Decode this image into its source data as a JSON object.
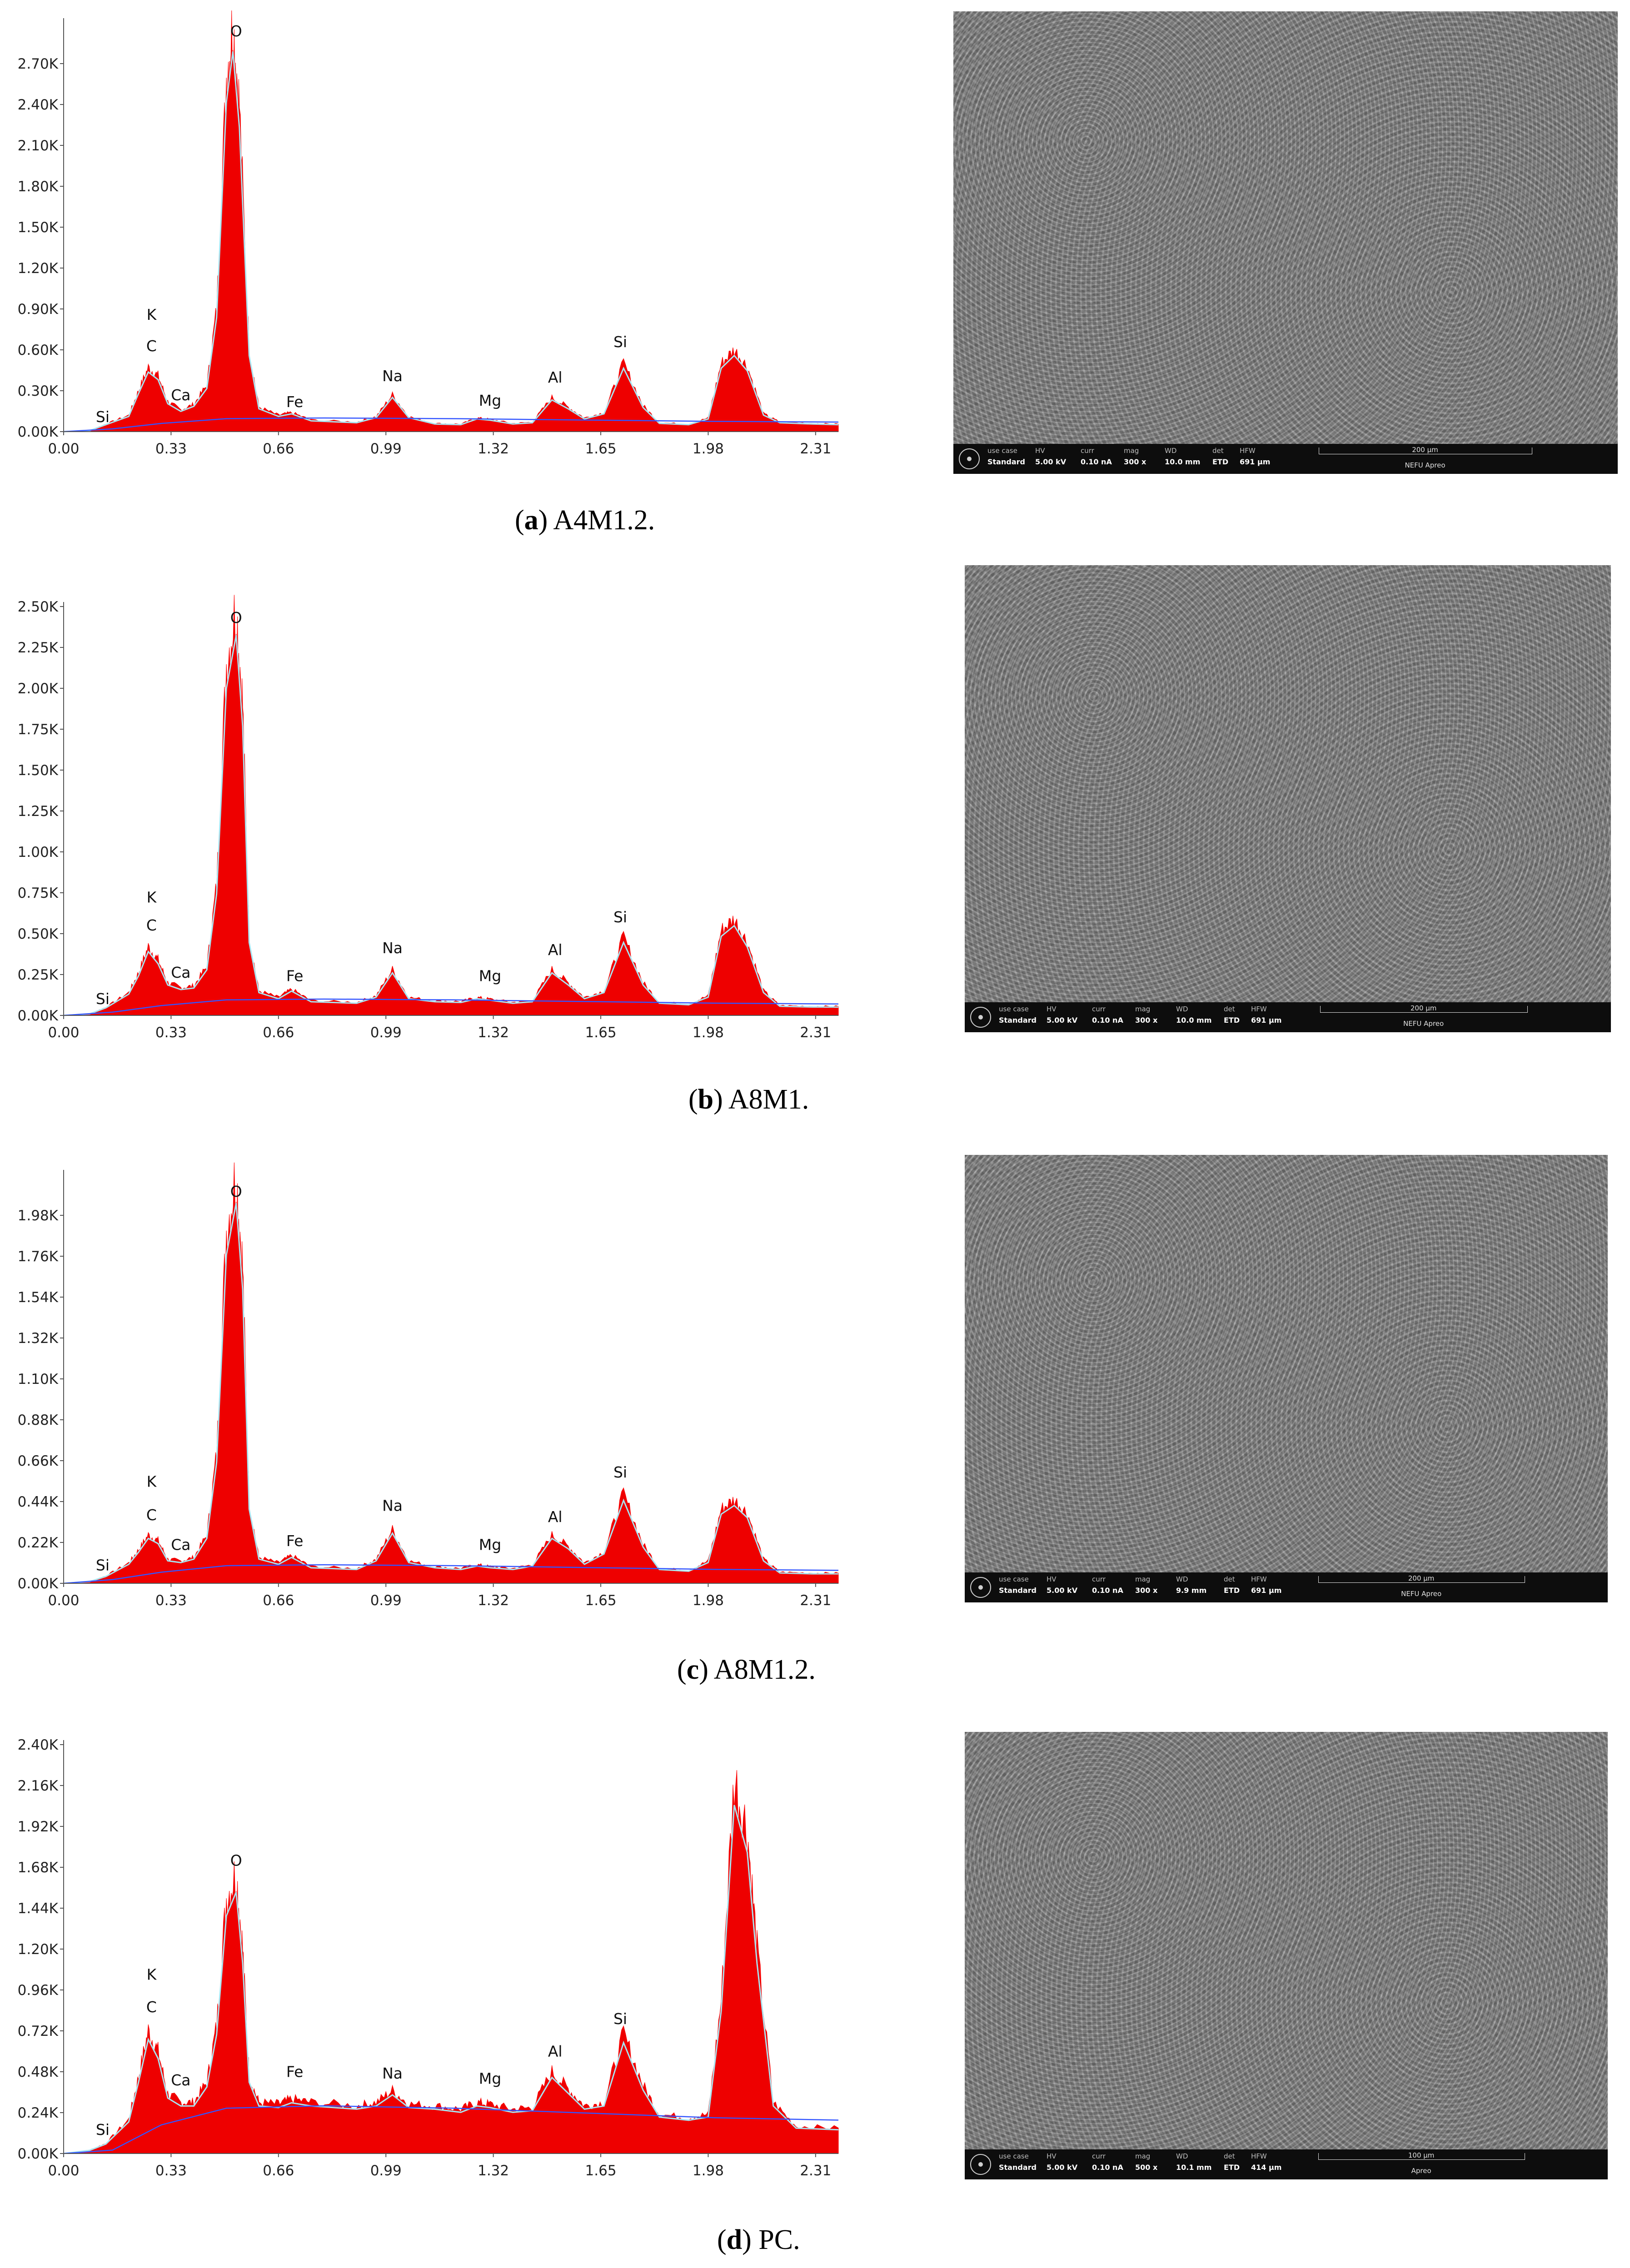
{
  "panels": [
    {
      "caption": {
        "letter": "a",
        "label": "A4M1.2."
      },
      "sem": {
        "head": [
          "use case",
          "HV",
          "curr",
          "mag",
          "WD",
          "det",
          "HFW"
        ],
        "vals": [
          "Standard",
          "5.00 kV",
          "0.10 nA",
          "300 x",
          "10.0 mm",
          "ETD",
          "691 μm"
        ],
        "scale": "200 μm",
        "tool": "NEFU Apreo"
      }
    },
    {
      "caption": {
        "letter": "b",
        "label": "A8M1."
      },
      "sem": {
        "head": [
          "use case",
          "HV",
          "curr",
          "mag",
          "WD",
          "det",
          "HFW"
        ],
        "vals": [
          "Standard",
          "5.00 kV",
          "0.10 nA",
          "300 x",
          "10.0 mm",
          "ETD",
          "691 μm"
        ],
        "scale": "200 μm",
        "tool": "NEFU Apreo"
      }
    },
    {
      "caption": {
        "letter": "c",
        "label": "A8M1.2."
      },
      "sem": {
        "head": [
          "use case",
          "HV",
          "curr",
          "mag",
          "WD",
          "det",
          "HFW"
        ],
        "vals": [
          "Standard",
          "5.00 kV",
          "0.10 nA",
          "300 x",
          "9.9 mm",
          "ETD",
          "691 μm"
        ],
        "scale": "200 μm",
        "tool": "NEFU Apreo"
      }
    },
    {
      "caption": {
        "letter": "d",
        "label": "PC."
      },
      "sem": {
        "head": [
          "use case",
          "HV",
          "curr",
          "mag",
          "WD",
          "det",
          "HFW"
        ],
        "vals": [
          "Standard",
          "5.00 kV",
          "0.10 nA",
          "500 x",
          "10.1 mm",
          "ETD",
          "414 μm"
        ],
        "scale": "100 μm",
        "tool": "Apreo"
      }
    }
  ],
  "chart_data": [
    {
      "type": "area",
      "x_ticks": [
        0.0,
        0.33,
        0.66,
        0.99,
        1.32,
        1.65,
        1.98,
        2.31
      ],
      "y_ticks": [
        "0.00K",
        "0.30K",
        "0.60K",
        "0.90K",
        "1.20K",
        "1.50K",
        "1.80K",
        "2.10K",
        "2.40K",
        "2.70K"
      ],
      "xlim": [
        0,
        2.38
      ],
      "ylim": [
        0,
        3000
      ],
      "series": [
        {
          "values": [
            [
              0.0,
              0
            ],
            [
              0.08,
              8
            ],
            [
              0.13,
              55
            ],
            [
              0.2,
              120
            ],
            [
              0.23,
              300
            ],
            [
              0.26,
              470
            ],
            [
              0.29,
              410
            ],
            [
              0.32,
              220
            ],
            [
              0.36,
              160
            ],
            [
              0.4,
              200
            ],
            [
              0.44,
              340
            ],
            [
              0.47,
              900
            ],
            [
              0.5,
              2600
            ],
            [
              0.52,
              3000
            ],
            [
              0.54,
              2400
            ],
            [
              0.57,
              600
            ],
            [
              0.6,
              180
            ],
            [
              0.66,
              120
            ],
            [
              0.7,
              140
            ],
            [
              0.76,
              85
            ],
            [
              0.9,
              70
            ],
            [
              0.96,
              110
            ],
            [
              1.01,
              270
            ],
            [
              1.06,
              110
            ],
            [
              1.14,
              60
            ],
            [
              1.22,
              55
            ],
            [
              1.27,
              100
            ],
            [
              1.31,
              90
            ],
            [
              1.38,
              60
            ],
            [
              1.44,
              70
            ],
            [
              1.5,
              250
            ],
            [
              1.55,
              180
            ],
            [
              1.6,
              100
            ],
            [
              1.66,
              140
            ],
            [
              1.72,
              500
            ],
            [
              1.78,
              190
            ],
            [
              1.83,
              65
            ],
            [
              1.92,
              55
            ],
            [
              1.98,
              100
            ],
            [
              2.02,
              500
            ],
            [
              2.06,
              600
            ],
            [
              2.1,
              480
            ],
            [
              2.15,
              130
            ],
            [
              2.2,
              70
            ],
            [
              2.3,
              60
            ],
            [
              2.38,
              55
            ]
          ]
        }
      ],
      "peaks": [
        {
          "label": "Si",
          "x": 0.12,
          "y": 70
        },
        {
          "label": "K",
          "x": 0.27,
          "y": 820
        },
        {
          "label": "C",
          "x": 0.27,
          "y": 590
        },
        {
          "label": "Ca",
          "x": 0.36,
          "y": 230
        },
        {
          "label": "O",
          "x": 0.53,
          "y": 2900
        },
        {
          "label": "Fe",
          "x": 0.71,
          "y": 180
        },
        {
          "label": "Na",
          "x": 1.01,
          "y": 370
        },
        {
          "label": "Mg",
          "x": 1.31,
          "y": 190
        },
        {
          "label": "Al",
          "x": 1.51,
          "y": 360
        },
        {
          "label": "Si",
          "x": 1.71,
          "y": 620
        }
      ]
    },
    {
      "type": "area",
      "x_ticks": [
        0.0,
        0.33,
        0.66,
        0.99,
        1.32,
        1.65,
        1.98,
        2.31
      ],
      "y_ticks": [
        "0.00K",
        "0.25K",
        "0.50K",
        "0.75K",
        "1.00K",
        "1.25K",
        "1.50K",
        "1.75K",
        "2.00K",
        "2.25K",
        "2.50K"
      ],
      "xlim": [
        0,
        2.38
      ],
      "ylim": [
        0,
        2500
      ],
      "series": [
        {
          "values": [
            [
              0.0,
              0
            ],
            [
              0.08,
              10
            ],
            [
              0.13,
              50
            ],
            [
              0.2,
              140
            ],
            [
              0.23,
              260
            ],
            [
              0.26,
              420
            ],
            [
              0.29,
              340
            ],
            [
              0.32,
              200
            ],
            [
              0.36,
              170
            ],
            [
              0.4,
              180
            ],
            [
              0.44,
              300
            ],
            [
              0.47,
              800
            ],
            [
              0.5,
              2150
            ],
            [
              0.53,
              2500
            ],
            [
              0.55,
              1900
            ],
            [
              0.57,
              480
            ],
            [
              0.6,
              150
            ],
            [
              0.66,
              110
            ],
            [
              0.7,
              160
            ],
            [
              0.76,
              90
            ],
            [
              0.9,
              80
            ],
            [
              0.96,
              120
            ],
            [
              1.01,
              280
            ],
            [
              1.06,
              110
            ],
            [
              1.14,
              90
            ],
            [
              1.22,
              85
            ],
            [
              1.27,
              110
            ],
            [
              1.31,
              100
            ],
            [
              1.38,
              80
            ],
            [
              1.44,
              90
            ],
            [
              1.5,
              280
            ],
            [
              1.55,
              200
            ],
            [
              1.6,
              110
            ],
            [
              1.66,
              150
            ],
            [
              1.72,
              480
            ],
            [
              1.78,
              200
            ],
            [
              1.83,
              80
            ],
            [
              1.92,
              70
            ],
            [
              1.98,
              120
            ],
            [
              2.02,
              520
            ],
            [
              2.06,
              590
            ],
            [
              2.1,
              450
            ],
            [
              2.15,
              150
            ],
            [
              2.2,
              60
            ],
            [
              2.3,
              55
            ],
            [
              2.38,
              55
            ]
          ]
        }
      ],
      "peaks": [
        {
          "label": "Si",
          "x": 0.12,
          "y": 70
        },
        {
          "label": "K",
          "x": 0.27,
          "y": 690
        },
        {
          "label": "C",
          "x": 0.27,
          "y": 520
        },
        {
          "label": "Ca",
          "x": 0.36,
          "y": 230
        },
        {
          "label": "O",
          "x": 0.53,
          "y": 2400
        },
        {
          "label": "Fe",
          "x": 0.71,
          "y": 210
        },
        {
          "label": "Na",
          "x": 1.01,
          "y": 380
        },
        {
          "label": "Mg",
          "x": 1.31,
          "y": 210
        },
        {
          "label": "Al",
          "x": 1.51,
          "y": 370
        },
        {
          "label": "Si",
          "x": 1.71,
          "y": 570
        }
      ]
    },
    {
      "type": "area",
      "x_ticks": [
        0.0,
        0.33,
        0.66,
        0.99,
        1.32,
        1.65,
        1.98,
        2.31
      ],
      "y_ticks": [
        "0.00K",
        "0.22K",
        "0.44K",
        "0.66K",
        "0.88K",
        "1.10K",
        "1.32K",
        "1.54K",
        "1.76K",
        "1.98K"
      ],
      "xlim": [
        0,
        2.38
      ],
      "ylim": [
        0,
        2200
      ],
      "series": [
        {
          "values": [
            [
              0.0,
              0
            ],
            [
              0.08,
              10
            ],
            [
              0.13,
              40
            ],
            [
              0.2,
              110
            ],
            [
              0.23,
              180
            ],
            [
              0.26,
              260
            ],
            [
              0.29,
              230
            ],
            [
              0.32,
              130
            ],
            [
              0.36,
              120
            ],
            [
              0.4,
              140
            ],
            [
              0.44,
              260
            ],
            [
              0.47,
              700
            ],
            [
              0.5,
              1900
            ],
            [
              0.53,
              2200
            ],
            [
              0.55,
              1700
            ],
            [
              0.57,
              430
            ],
            [
              0.6,
              140
            ],
            [
              0.66,
              110
            ],
            [
              0.7,
              150
            ],
            [
              0.76,
              90
            ],
            [
              0.9,
              80
            ],
            [
              0.96,
              130
            ],
            [
              1.01,
              290
            ],
            [
              1.06,
              120
            ],
            [
              1.14,
              90
            ],
            [
              1.22,
              80
            ],
            [
              1.27,
              100
            ],
            [
              1.31,
              90
            ],
            [
              1.38,
              80
            ],
            [
              1.44,
              100
            ],
            [
              1.5,
              260
            ],
            [
              1.55,
              200
            ],
            [
              1.6,
              110
            ],
            [
              1.66,
              170
            ],
            [
              1.72,
              480
            ],
            [
              1.78,
              210
            ],
            [
              1.83,
              80
            ],
            [
              1.92,
              70
            ],
            [
              1.98,
              120
            ],
            [
              2.02,
              400
            ],
            [
              2.06,
              450
            ],
            [
              2.1,
              380
            ],
            [
              2.15,
              130
            ],
            [
              2.2,
              60
            ],
            [
              2.3,
              55
            ],
            [
              2.38,
              55
            ]
          ]
        }
      ],
      "peaks": [
        {
          "label": "Si",
          "x": 0.12,
          "y": 70
        },
        {
          "label": "K",
          "x": 0.27,
          "y": 520
        },
        {
          "label": "C",
          "x": 0.27,
          "y": 340
        },
        {
          "label": "Ca",
          "x": 0.36,
          "y": 180
        },
        {
          "label": "O",
          "x": 0.53,
          "y": 2080
        },
        {
          "label": "Fe",
          "x": 0.71,
          "y": 200
        },
        {
          "label": "Na",
          "x": 1.01,
          "y": 390
        },
        {
          "label": "Mg",
          "x": 1.31,
          "y": 180
        },
        {
          "label": "Al",
          "x": 1.51,
          "y": 330
        },
        {
          "label": "Si",
          "x": 1.71,
          "y": 570
        }
      ]
    },
    {
      "type": "area",
      "x_ticks": [
        0.0,
        0.33,
        0.66,
        0.99,
        1.32,
        1.65,
        1.98,
        2.31
      ],
      "y_ticks": [
        "0.00K",
        "0.24K",
        "0.48K",
        "0.72K",
        "0.96K",
        "1.20K",
        "1.44K",
        "1.68K",
        "1.92K",
        "2.16K",
        "2.40K"
      ],
      "xlim": [
        0,
        2.38
      ],
      "ylim": [
        0,
        2400
      ],
      "series": [
        {
          "values": [
            [
              0.0,
              0
            ],
            [
              0.08,
              20
            ],
            [
              0.13,
              60
            ],
            [
              0.2,
              200
            ],
            [
              0.23,
              450
            ],
            [
              0.26,
              720
            ],
            [
              0.29,
              600
            ],
            [
              0.32,
              350
            ],
            [
              0.36,
              300
            ],
            [
              0.4,
              300
            ],
            [
              0.44,
              420
            ],
            [
              0.47,
              750
            ],
            [
              0.5,
              1500
            ],
            [
              0.53,
              1650
            ],
            [
              0.55,
              1200
            ],
            [
              0.57,
              450
            ],
            [
              0.6,
              300
            ],
            [
              0.66,
              290
            ],
            [
              0.7,
              320
            ],
            [
              0.76,
              300
            ],
            [
              0.9,
              280
            ],
            [
              0.96,
              300
            ],
            [
              1.01,
              370
            ],
            [
              1.06,
              290
            ],
            [
              1.14,
              280
            ],
            [
              1.22,
              260
            ],
            [
              1.27,
              300
            ],
            [
              1.31,
              290
            ],
            [
              1.38,
              260
            ],
            [
              1.44,
              270
            ],
            [
              1.5,
              480
            ],
            [
              1.55,
              380
            ],
            [
              1.6,
              280
            ],
            [
              1.66,
              300
            ],
            [
              1.72,
              700
            ],
            [
              1.78,
              400
            ],
            [
              1.83,
              230
            ],
            [
              1.92,
              210
            ],
            [
              1.98,
              230
            ],
            [
              2.02,
              900
            ],
            [
              2.06,
              2200
            ],
            [
              2.1,
              1900
            ],
            [
              2.13,
              1200
            ],
            [
              2.18,
              300
            ],
            [
              2.25,
              160
            ],
            [
              2.38,
              150
            ]
          ]
        }
      ],
      "peaks": [
        {
          "label": "Si",
          "x": 0.12,
          "y": 110
        },
        {
          "label": "K",
          "x": 0.27,
          "y": 1020
        },
        {
          "label": "C",
          "x": 0.27,
          "y": 830
        },
        {
          "label": "Ca",
          "x": 0.36,
          "y": 400
        },
        {
          "label": "O",
          "x": 0.53,
          "y": 1690
        },
        {
          "label": "Fe",
          "x": 0.71,
          "y": 450
        },
        {
          "label": "Na",
          "x": 1.01,
          "y": 440
        },
        {
          "label": "Mg",
          "x": 1.31,
          "y": 410
        },
        {
          "label": "Al",
          "x": 1.51,
          "y": 570
        },
        {
          "label": "Si",
          "x": 1.71,
          "y": 760
        }
      ]
    }
  ]
}
